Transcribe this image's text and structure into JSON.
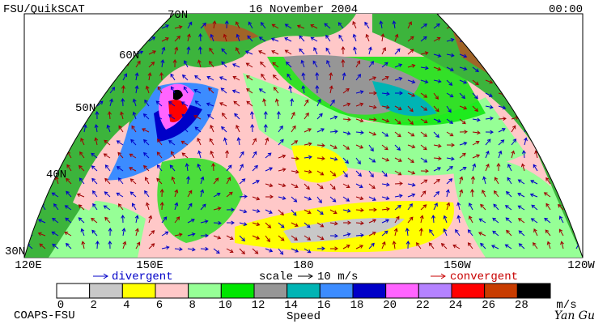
{
  "header": {
    "title": "FSU/QuikSCAT",
    "date": "16 November 2004",
    "time": "00:00"
  },
  "map": {
    "latitude_labels": [
      "70N",
      "60N",
      "50N",
      "40N",
      "30N"
    ],
    "longitude_labels": [
      "120E",
      "150E",
      "180",
      "150W",
      "120W"
    ]
  },
  "legend": {
    "divergent": "divergent",
    "scale": "scale",
    "scale_value": "10 m/s",
    "convergent": "convergent"
  },
  "colorbar": {
    "ticks": [
      0,
      2,
      4,
      6,
      8,
      10,
      12,
      14,
      16,
      18,
      20,
      22,
      24,
      26,
      28
    ],
    "colors": [
      "#ffffff",
      "#c8c8c8",
      "#ffff00",
      "#ffc8c8",
      "#96ff96",
      "#00e600",
      "#969696",
      "#00b4b4",
      "#3c8cff",
      "#0000c8",
      "#ff64ff",
      "#b482ff",
      "#ff0000",
      "#c83c00",
      "#000000"
    ],
    "unit": "m/s",
    "label": "Speed"
  },
  "footer": {
    "credit": "COAPS-FSU",
    "author": "Yan Gu"
  }
}
